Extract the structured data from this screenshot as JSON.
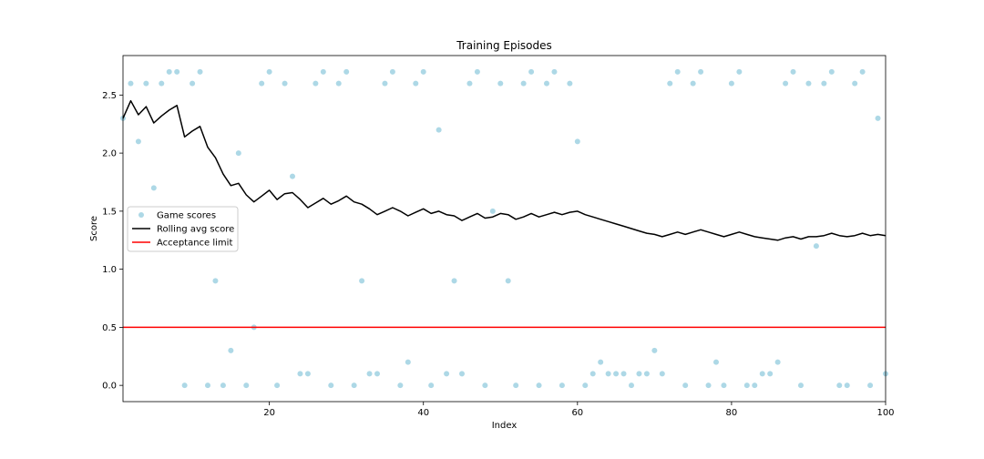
{
  "chart_data": {
    "type": "scatter",
    "title": "Training Episodes",
    "xlabel": "Index",
    "ylabel": "Score",
    "xlim": [
      1,
      100
    ],
    "ylim": [
      -0.14,
      2.84
    ],
    "xticks": [
      20,
      40,
      60,
      80,
      100
    ],
    "yticks": [
      0.0,
      0.5,
      1.0,
      1.5,
      2.0,
      2.5
    ],
    "xtick_labels": [
      "20",
      "40",
      "60",
      "80",
      "100"
    ],
    "ytick_labels": [
      "0.0",
      "0.5",
      "1.0",
      "1.5",
      "2.0",
      "2.5"
    ],
    "grid": false,
    "legend_position": "center-left",
    "series": [
      {
        "name": "Game scores",
        "kind": "scatter",
        "color": "#add8e6",
        "x": [
          1,
          2,
          3,
          4,
          5,
          6,
          7,
          8,
          9,
          10,
          11,
          12,
          13,
          14,
          15,
          16,
          17,
          18,
          19,
          20,
          21,
          22,
          23,
          24,
          25,
          26,
          27,
          28,
          29,
          30,
          31,
          32,
          33,
          34,
          35,
          36,
          37,
          38,
          39,
          40,
          41,
          42,
          43,
          44,
          45,
          46,
          47,
          48,
          49,
          50,
          51,
          52,
          53,
          54,
          55,
          56,
          57,
          58,
          59,
          60,
          61,
          62,
          63,
          64,
          65,
          66,
          67,
          68,
          69,
          70,
          71,
          72,
          73,
          74,
          75,
          76,
          77,
          78,
          79,
          80,
          81,
          82,
          83,
          84,
          85,
          86,
          87,
          88,
          89,
          90,
          91,
          92,
          93,
          94,
          95,
          96,
          97,
          98,
          99,
          100
        ],
        "y": [
          2.3,
          2.6,
          2.1,
          2.6,
          1.7,
          2.6,
          2.7,
          2.7,
          0.0,
          2.6,
          2.7,
          0.0,
          0.9,
          0.0,
          0.3,
          2.0,
          0.0,
          0.5,
          2.6,
          2.7,
          0.0,
          2.6,
          1.8,
          0.1,
          0.1,
          2.6,
          2.7,
          0.0,
          2.6,
          2.7,
          0.0,
          0.9,
          0.1,
          0.1,
          2.6,
          2.7,
          0.0,
          0.2,
          2.6,
          2.7,
          0.0,
          2.2,
          0.1,
          0.9,
          0.1,
          2.6,
          2.7,
          0.0,
          1.5,
          2.6,
          0.9,
          0.0,
          2.6,
          2.7,
          0.0,
          2.6,
          2.7,
          0.0,
          2.6,
          2.1,
          0.0,
          0.1,
          0.2,
          0.1,
          0.1,
          0.1,
          0.0,
          0.1,
          0.1,
          0.3,
          0.1,
          2.6,
          2.7,
          0.0,
          2.6,
          2.7,
          0.0,
          0.2,
          0.0,
          2.6,
          2.7,
          0.0,
          0.0,
          0.1,
          0.1,
          0.2,
          2.6,
          2.7,
          0.0,
          2.6,
          1.2,
          2.6,
          2.7,
          0.0,
          0.0,
          2.6,
          2.7,
          0.0,
          2.3,
          0.1
        ]
      },
      {
        "name": "Rolling avg score",
        "kind": "line",
        "color": "#000000",
        "x": [
          1,
          2,
          3,
          4,
          5,
          6,
          7,
          8,
          9,
          10,
          11,
          12,
          13,
          14,
          15,
          16,
          17,
          18,
          19,
          20,
          21,
          22,
          23,
          24,
          25,
          26,
          27,
          28,
          29,
          30,
          31,
          32,
          33,
          34,
          35,
          36,
          37,
          38,
          39,
          40,
          41,
          42,
          43,
          44,
          45,
          46,
          47,
          48,
          49,
          50,
          51,
          52,
          53,
          54,
          55,
          56,
          57,
          58,
          59,
          60,
          61,
          62,
          63,
          64,
          65,
          66,
          67,
          68,
          69,
          70,
          71,
          72,
          73,
          74,
          75,
          76,
          77,
          78,
          79,
          80,
          81,
          82,
          83,
          84,
          85,
          86,
          87,
          88,
          89,
          90,
          91,
          92,
          93,
          94,
          95,
          96,
          97,
          98,
          99,
          100
        ],
        "y": [
          2.3,
          2.45,
          2.33,
          2.4,
          2.26,
          2.32,
          2.37,
          2.41,
          2.14,
          2.19,
          2.23,
          2.05,
          1.96,
          1.82,
          1.72,
          1.74,
          1.64,
          1.58,
          1.63,
          1.68,
          1.6,
          1.65,
          1.66,
          1.6,
          1.53,
          1.57,
          1.61,
          1.56,
          1.59,
          1.63,
          1.58,
          1.56,
          1.52,
          1.47,
          1.5,
          1.53,
          1.5,
          1.46,
          1.49,
          1.52,
          1.48,
          1.5,
          1.47,
          1.46,
          1.42,
          1.45,
          1.48,
          1.44,
          1.45,
          1.48,
          1.47,
          1.43,
          1.45,
          1.48,
          1.45,
          1.47,
          1.49,
          1.47,
          1.49,
          1.5,
          1.47,
          1.45,
          1.43,
          1.41,
          1.39,
          1.37,
          1.35,
          1.33,
          1.31,
          1.3,
          1.28,
          1.3,
          1.32,
          1.3,
          1.32,
          1.34,
          1.32,
          1.3,
          1.28,
          1.3,
          1.32,
          1.3,
          1.28,
          1.27,
          1.26,
          1.25,
          1.27,
          1.28,
          1.26,
          1.28,
          1.28,
          1.29,
          1.31,
          1.29,
          1.28,
          1.29,
          1.31,
          1.29,
          1.3,
          1.29
        ]
      },
      {
        "name": "Acceptance limit",
        "kind": "hline",
        "color": "#ff0000",
        "y": 0.5
      }
    ]
  }
}
